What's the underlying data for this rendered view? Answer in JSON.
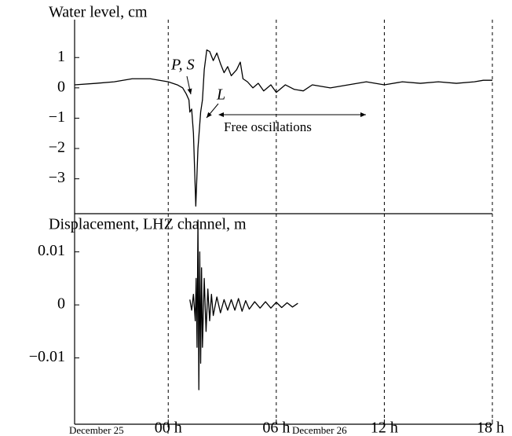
{
  "chart_data": [
    {
      "type": "line",
      "ylabel": "Water level, cm",
      "color": "#000000",
      "x": [
        -5.2,
        -4,
        -3,
        -2,
        -1,
        0,
        0.5,
        0.8,
        1.0,
        1.15,
        1.2,
        1.3,
        1.4,
        1.53,
        1.65,
        1.8,
        1.9,
        2.0,
        2.14,
        2.3,
        2.5,
        2.7,
        2.9,
        3.1,
        3.3,
        3.5,
        3.8,
        4.0,
        4.15,
        4.4,
        4.7,
        5.0,
        5.3,
        5.7,
        6.0,
        6.5,
        7,
        7.5,
        8,
        9,
        10,
        11,
        12,
        13,
        14,
        15,
        16,
        17,
        17.5,
        18
      ],
      "values": [
        0.1,
        0.15,
        0.2,
        0.3,
        0.3,
        0.2,
        0.1,
        0.0,
        -0.2,
        -0.4,
        -0.8,
        -0.7,
        -1.5,
        -3.9,
        -2.0,
        -0.8,
        -0.4,
        0.6,
        1.25,
        1.2,
        0.9,
        1.15,
        0.8,
        0.5,
        0.7,
        0.4,
        0.6,
        0.85,
        0.3,
        0.2,
        0.0,
        0.15,
        -0.1,
        0.1,
        -0.15,
        0.1,
        -0.05,
        -0.1,
        0.1,
        0.0,
        0.1,
        0.2,
        0.1,
        0.2,
        0.15,
        0.2,
        0.15,
        0.2,
        0.25,
        0.25
      ],
      "xlim": [
        -5.2,
        18
      ],
      "ylim": [
        -4.15,
        2.25
      ],
      "yticks": [
        {
          "value": -3,
          "label": "−3"
        },
        {
          "value": -2,
          "label": "−2"
        },
        {
          "value": -1,
          "label": "−1"
        },
        0,
        1
      ],
      "grid": "x",
      "grid_style": "dashed",
      "annotations": [
        "P, S",
        "L",
        "Free oscillations"
      ]
    },
    {
      "type": "line",
      "ylabel": "Displacement, LHZ channel, m",
      "color": "#000000",
      "x": [
        1.2,
        1.3,
        1.4,
        1.5,
        1.55,
        1.6,
        1.65,
        1.7,
        1.75,
        1.8,
        1.85,
        1.9,
        2.0,
        2.1,
        2.2,
        2.3,
        2.4,
        2.5,
        2.7,
        2.9,
        3.1,
        3.3,
        3.5,
        3.7,
        3.9,
        4.1,
        4.3,
        4.5,
        4.8,
        5.1,
        5.4,
        5.7,
        6.0,
        6.3,
        6.6,
        6.9,
        7.2
      ],
      "values": [
        0.001,
        -0.001,
        0.002,
        -0.003,
        0.005,
        -0.008,
        0.016,
        -0.016,
        0.01,
        -0.011,
        0.007,
        -0.008,
        0.005,
        -0.005,
        0.003,
        -0.003,
        0.002,
        -0.002,
        0.0015,
        -0.0015,
        0.001,
        -0.001,
        0.001,
        -0.001,
        0.0012,
        -0.0012,
        0.0008,
        -0.0008,
        0.0006,
        -0.0006,
        0.0006,
        -0.0006,
        0.0005,
        -0.0005,
        0.0004,
        -0.0004,
        0.0003
      ],
      "xlim": [
        -5.2,
        18
      ],
      "ylim": [
        -0.0225,
        0.0172
      ],
      "xticks": [
        {
          "value": 0,
          "label": "00 h"
        },
        {
          "value": 6,
          "label": "06 h"
        },
        {
          "value": 12,
          "label": "12 h"
        },
        {
          "value": 18,
          "label": "18 h"
        }
      ],
      "yticks": [
        {
          "value": -0.01,
          "label": "−0.01"
        },
        0,
        0.01
      ],
      "grid": "x",
      "grid_style": "dashed",
      "annotations": [
        "December 25",
        "December 26"
      ]
    }
  ]
}
